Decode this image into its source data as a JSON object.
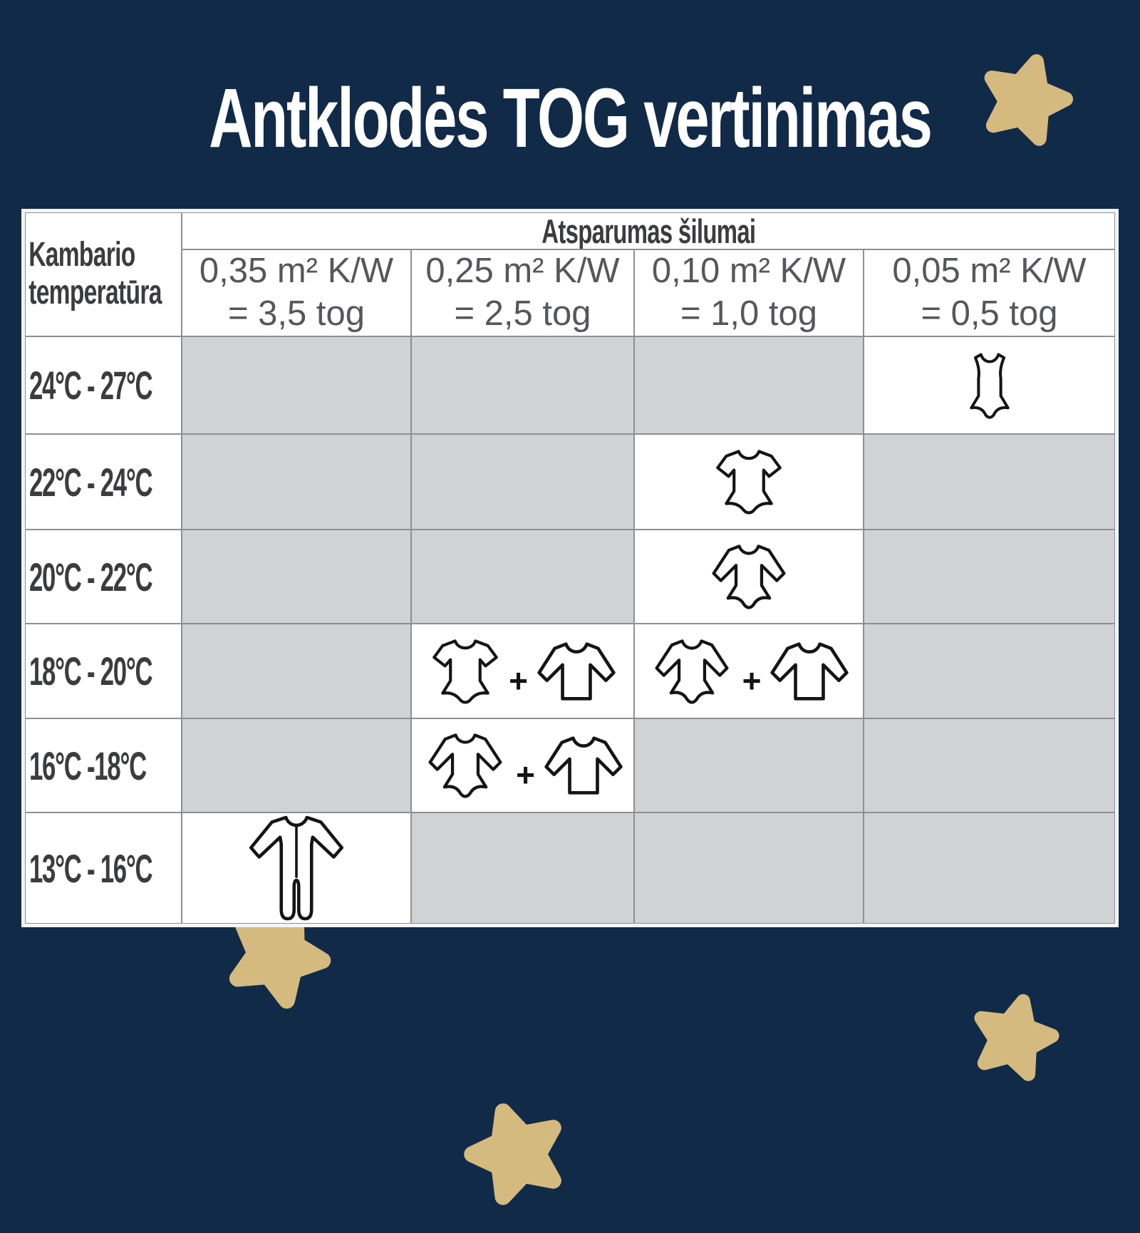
{
  "chart_data": {
    "type": "table",
    "title": "Antklodės TOG vertinimas",
    "corner": {
      "line1": "Kambario",
      "line2": "temperatūra"
    },
    "group_header": "Atsparumas šilumai",
    "columns": [
      {
        "line1": "0,35 m² K/W",
        "line2": "= 3,5 tog"
      },
      {
        "line1": "0,25 m² K/W",
        "line2": "= 2,5 tog"
      },
      {
        "line1": "0,10 m² K/W",
        "line2": "= 1,0 tog"
      },
      {
        "line1": "0,05 m² K/W",
        "line2": "= 0,5 tog"
      }
    ],
    "plus_sign": "+",
    "rows": [
      {
        "label": "24°C - 27°C",
        "cells": [
          null,
          null,
          null,
          [
            "sleeveless-bodysuit"
          ]
        ]
      },
      {
        "label": "22°C - 24°C",
        "cells": [
          null,
          null,
          [
            "short-sleeve-bodysuit"
          ],
          null
        ]
      },
      {
        "label": "20°C - 22°C",
        "cells": [
          null,
          null,
          [
            "long-sleeve-bodysuit"
          ],
          null
        ]
      },
      {
        "label": "18°C - 20°C",
        "cells": [
          null,
          [
            "short-sleeve-bodysuit",
            "long-sleeve-shirt"
          ],
          [
            "long-sleeve-bodysuit",
            "long-sleeve-shirt"
          ],
          null
        ]
      },
      {
        "label": "16°C -18°C",
        "cells": [
          null,
          [
            "long-sleeve-bodysuit",
            "long-sleeve-shirt"
          ],
          null,
          null
        ]
      },
      {
        "label": "13°C - 16°C",
        "cells": [
          [
            "sleepsuit"
          ],
          null,
          null,
          null
        ]
      }
    ],
    "legend": "cells with garment icons = recommended clothing; shaded cells = not applicable"
  },
  "colors": {
    "background": "#112a47",
    "star": "#d5ba80",
    "cell_inactive": "#d1d2d4",
    "grid_line": "#8e8f93",
    "table_border": "#f4f5f6",
    "heading_text": "#3b3c3e",
    "subheader_text": "#55575b",
    "title_text": "#ffffff",
    "icon_stroke": "#141414"
  }
}
